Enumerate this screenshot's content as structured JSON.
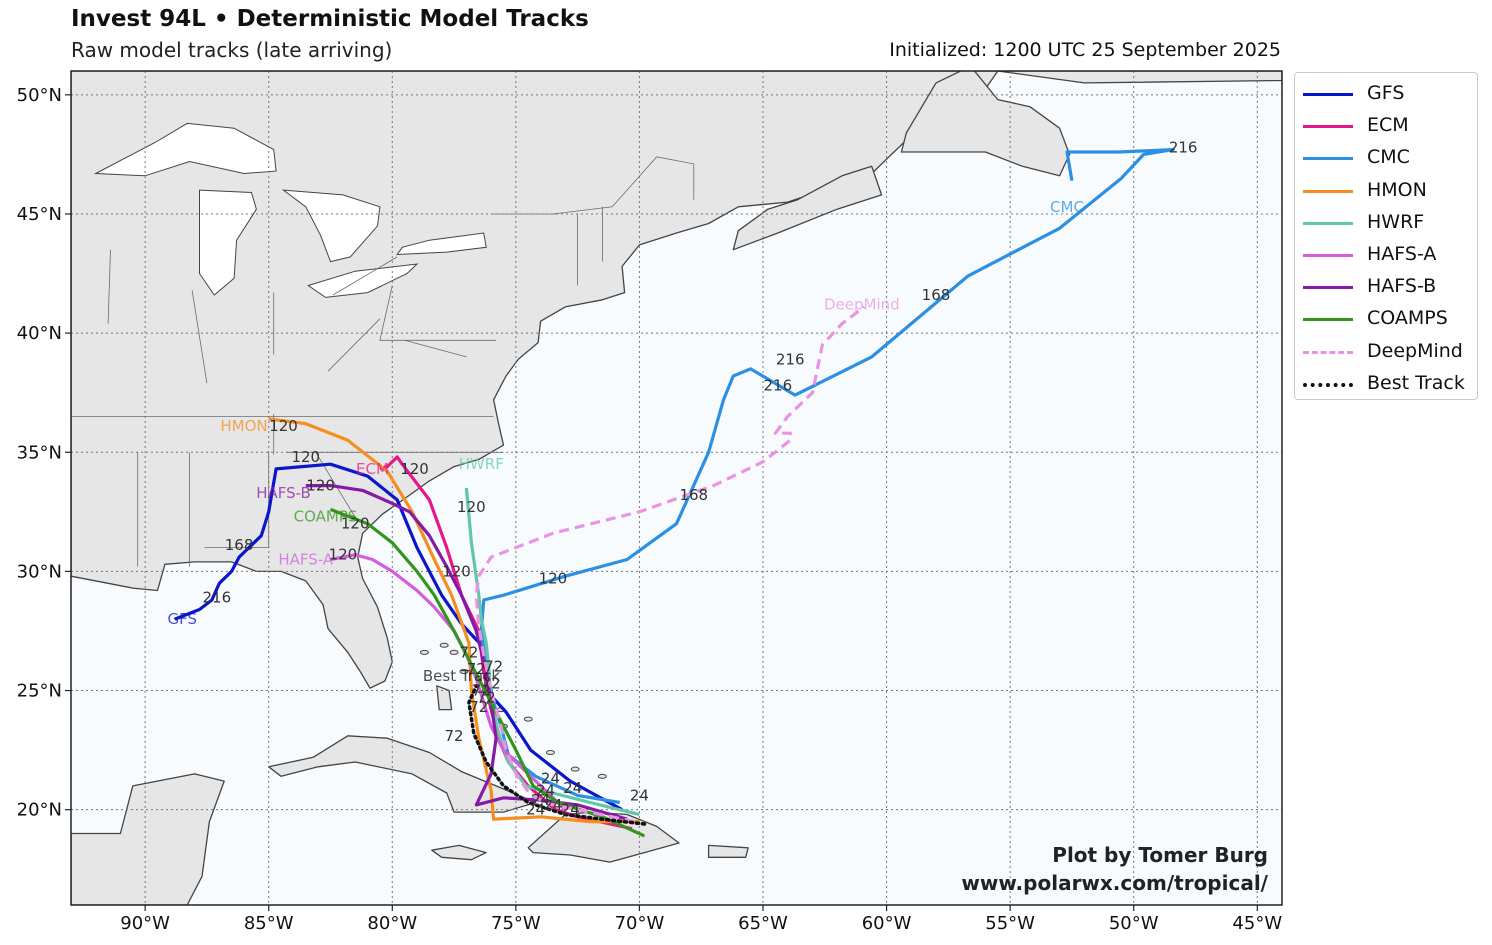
{
  "header": {
    "title": "Invest 94L • Deterministic Model Tracks",
    "subtitle": "Raw model tracks (late arriving)",
    "initialized": "Initialized: 1200 UTC 25 September 2025"
  },
  "credit": {
    "line1": "Plot by Tomer Burg",
    "line2": "www.polarwx.com/tropical/"
  },
  "colors": {
    "ocean": "#f7fbfe",
    "land": "#e6e6e6",
    "coast": "#444444",
    "grid": "#777777"
  },
  "chart_data": {
    "type": "map-tracks",
    "extent": {
      "lon": [
        -93,
        -44
      ],
      "lat": [
        16,
        51
      ]
    },
    "lon_ticks": [
      -90,
      -85,
      -80,
      -75,
      -70,
      -65,
      -60,
      -55,
      -50,
      -45
    ],
    "lat_ticks": [
      20,
      25,
      30,
      35,
      40,
      45,
      50
    ],
    "lon_tick_labels": [
      "90°W",
      "85°W",
      "80°W",
      "75°W",
      "70°W",
      "65°W",
      "60°W",
      "55°W",
      "50°W",
      "45°W"
    ],
    "lat_tick_labels": [
      "20°N",
      "25°N",
      "30°N",
      "35°N",
      "40°N",
      "45°N",
      "50°N"
    ],
    "grid": true,
    "legend_position": "outside right",
    "series": [
      {
        "name": "GFS",
        "color": "#0a16cc",
        "style": "solid",
        "points": [
          [
            -70.7,
            20.0
          ],
          [
            -72.8,
            21.2
          ],
          [
            -74.4,
            22.5
          ],
          [
            -75.4,
            24.1
          ],
          [
            -76.2,
            25.0
          ],
          [
            -76.3,
            26.8
          ],
          [
            -77.2,
            27.8
          ],
          [
            -78.0,
            29.0
          ],
          [
            -79.0,
            31.0
          ],
          [
            -79.8,
            33.0
          ],
          [
            -81.0,
            34.0
          ],
          [
            -82.5,
            34.5
          ],
          [
            -84.7,
            34.3
          ],
          [
            -85.0,
            32.5
          ],
          [
            -85.3,
            31.5
          ],
          [
            -86.2,
            30.6
          ],
          [
            -86.5,
            30.0
          ],
          [
            -87.0,
            29.5
          ],
          [
            -87.3,
            28.8
          ],
          [
            -87.8,
            28.4
          ],
          [
            -88.8,
            28.0
          ]
        ],
        "labels": [
          {
            "text": "24",
            "lon": -70.0,
            "lat": 20.6
          },
          {
            "text": "72",
            "lon": -75.9,
            "lat": 26.0
          },
          {
            "text": "120",
            "lon": -83.5,
            "lat": 34.8
          },
          {
            "text": "168",
            "lon": -86.2,
            "lat": 31.1
          },
          {
            "text": "216",
            "lon": -87.1,
            "lat": 28.9
          },
          {
            "text": "GFS",
            "lon": -88.5,
            "lat": 28.0,
            "tag": true
          }
        ]
      },
      {
        "name": "ECM",
        "color": "#e5188b",
        "style": "solid",
        "points": [
          [
            -70.3,
            19.2
          ],
          [
            -72.5,
            19.7
          ],
          [
            -73.4,
            20.0
          ],
          [
            -74.5,
            21.0
          ],
          [
            -75.3,
            22.0
          ],
          [
            -75.7,
            23.0
          ],
          [
            -76.0,
            24.2
          ],
          [
            -76.3,
            25.8
          ],
          [
            -76.5,
            27.5
          ],
          [
            -77.2,
            29.0
          ],
          [
            -77.8,
            31.0
          ],
          [
            -78.5,
            33.0
          ],
          [
            -79.6,
            34.5
          ],
          [
            -79.8,
            34.8
          ],
          [
            -80.2,
            34.4
          ],
          [
            -80.5,
            34.3
          ]
        ],
        "labels": [
          {
            "text": "120",
            "lon": -79.1,
            "lat": 34.3
          },
          {
            "text": "ECM",
            "lon": -80.8,
            "lat": 34.3,
            "tag": true
          }
        ]
      },
      {
        "name": "CMC",
        "color": "#2b8fe4",
        "style": "solid",
        "points": [
          [
            -70.8,
            20.3
          ],
          [
            -72.5,
            20.6
          ],
          [
            -74.2,
            21.4
          ],
          [
            -75.3,
            22.3
          ],
          [
            -75.6,
            23.5
          ],
          [
            -75.9,
            24.5
          ],
          [
            -76.2,
            26.0
          ],
          [
            -76.4,
            27.5
          ],
          [
            -76.3,
            28.8
          ],
          [
            -75.5,
            29.0
          ],
          [
            -73.0,
            29.8
          ],
          [
            -70.5,
            30.5
          ],
          [
            -68.5,
            32.0
          ],
          [
            -67.2,
            35.0
          ],
          [
            -66.6,
            37.2
          ],
          [
            -66.2,
            38.2
          ],
          [
            -65.5,
            38.5
          ],
          [
            -63.7,
            37.4
          ],
          [
            -60.6,
            39.0
          ],
          [
            -56.7,
            42.4
          ],
          [
            -53.0,
            44.4
          ],
          [
            -50.5,
            46.5
          ],
          [
            -49.6,
            47.5
          ],
          [
            -48.4,
            47.7
          ],
          [
            -50.6,
            47.6
          ],
          [
            -52.7,
            47.6
          ],
          [
            -52.5,
            46.4
          ]
        ],
        "labels": [
          {
            "text": "120",
            "lon": -73.5,
            "lat": 29.7
          },
          {
            "text": "168",
            "lon": -67.8,
            "lat": 33.2
          },
          {
            "text": "216",
            "lon": -64.4,
            "lat": 37.8
          },
          {
            "text": "168",
            "lon": -58.0,
            "lat": 41.6
          },
          {
            "text": "216",
            "lon": -48.0,
            "lat": 47.8
          },
          {
            "text": "CMC",
            "lon": -52.7,
            "lat": 45.3,
            "tag": true
          }
        ]
      },
      {
        "name": "HMON",
        "color": "#f68e1f",
        "style": "solid",
        "points": [
          [
            -70.0,
            19.5
          ],
          [
            -72.0,
            19.5
          ],
          [
            -74.0,
            19.7
          ],
          [
            -75.9,
            19.6
          ],
          [
            -76.0,
            20.8
          ],
          [
            -76.5,
            23.0
          ],
          [
            -76.8,
            25.0
          ],
          [
            -76.9,
            27.0
          ],
          [
            -77.6,
            29.0
          ],
          [
            -78.3,
            30.5
          ],
          [
            -79.2,
            32.5
          ],
          [
            -80.2,
            34.2
          ],
          [
            -81.8,
            35.5
          ],
          [
            -83.5,
            36.2
          ],
          [
            -85.0,
            36.4
          ]
        ],
        "labels": [
          {
            "text": "120",
            "lon": -84.4,
            "lat": 36.1
          },
          {
            "text": "HMON",
            "lon": -86.0,
            "lat": 36.1,
            "tag": true
          }
        ]
      },
      {
        "name": "HWRF",
        "color": "#62c7a9",
        "style": "solid",
        "points": [
          [
            -70.0,
            19.8
          ],
          [
            -72.0,
            20.3
          ],
          [
            -73.5,
            20.7
          ],
          [
            -74.6,
            21.0
          ],
          [
            -75.3,
            22.0
          ],
          [
            -75.7,
            23.2
          ],
          [
            -76.0,
            24.5
          ],
          [
            -76.1,
            26.0
          ],
          [
            -76.2,
            27.0
          ],
          [
            -76.4,
            28.0
          ],
          [
            -76.5,
            29.0
          ],
          [
            -76.8,
            31.2
          ],
          [
            -77.0,
            33.5
          ]
        ],
        "labels": [
          {
            "text": "120",
            "lon": -76.8,
            "lat": 32.7
          },
          {
            "text": "HWRF",
            "lon": -76.4,
            "lat": 34.5,
            "tag": true
          }
        ]
      },
      {
        "name": "HAFS-A",
        "color": "#d35ddc",
        "style": "solid",
        "points": [
          [
            -73.0,
            20.0
          ],
          [
            -74.5,
            21.5
          ],
          [
            -75.5,
            22.5
          ],
          [
            -76.0,
            23.5
          ],
          [
            -76.3,
            24.5
          ],
          [
            -76.6,
            25.5
          ],
          [
            -77.0,
            26.5
          ],
          [
            -77.5,
            27.5
          ],
          [
            -78.3,
            28.5
          ],
          [
            -79.0,
            29.2
          ],
          [
            -80.0,
            30.0
          ],
          [
            -80.8,
            30.5
          ],
          [
            -81.5,
            30.7
          ],
          [
            -82.5,
            30.5
          ]
        ],
        "labels": [
          {
            "text": "72",
            "lon": -76.6,
            "lat": 25.9
          },
          {
            "text": "120",
            "lon": -82.0,
            "lat": 30.7
          },
          {
            "text": "HAFS-A",
            "lon": -83.5,
            "lat": 30.5,
            "tag": true
          }
        ]
      },
      {
        "name": "HAFS-B",
        "color": "#8619a8",
        "style": "solid",
        "points": [
          [
            -70.5,
            19.6
          ],
          [
            -72.5,
            20.2
          ],
          [
            -74.0,
            20.4
          ],
          [
            -75.5,
            20.5
          ],
          [
            -76.6,
            20.2
          ],
          [
            -76.0,
            21.5
          ],
          [
            -75.8,
            23.0
          ],
          [
            -76.0,
            24.5
          ],
          [
            -76.2,
            25.8
          ],
          [
            -76.6,
            27.5
          ],
          [
            -77.2,
            29.0
          ],
          [
            -77.8,
            30.2
          ],
          [
            -78.5,
            31.5
          ],
          [
            -79.3,
            32.5
          ],
          [
            -80.1,
            32.9
          ],
          [
            -81.2,
            33.4
          ],
          [
            -82.5,
            33.6
          ],
          [
            -83.5,
            33.6
          ]
        ],
        "labels": [
          {
            "text": "72",
            "lon": -76.4,
            "lat": 25.0
          },
          {
            "text": "120",
            "lon": -82.9,
            "lat": 33.6
          },
          {
            "text": "HAFS-B",
            "lon": -84.4,
            "lat": 33.3,
            "tag": true
          }
        ]
      },
      {
        "name": "COAMPS",
        "color": "#33951e",
        "style": "solid",
        "points": [
          [
            -69.8,
            18.9
          ],
          [
            -71.5,
            19.7
          ],
          [
            -73.3,
            20.3
          ],
          [
            -74.3,
            21.0
          ],
          [
            -75.0,
            22.5
          ],
          [
            -75.5,
            23.5
          ],
          [
            -76.0,
            24.5
          ],
          [
            -76.5,
            25.5
          ],
          [
            -77.0,
            26.5
          ],
          [
            -77.5,
            27.5
          ],
          [
            -78.3,
            29.0
          ],
          [
            -79.0,
            30.0
          ],
          [
            -80.0,
            31.2
          ],
          [
            -81.0,
            32.0
          ],
          [
            -82.0,
            32.4
          ],
          [
            -82.5,
            32.6
          ]
        ],
        "labels": [
          {
            "text": "72",
            "lon": -76.9,
            "lat": 26.6
          },
          {
            "text": "120",
            "lon": -81.5,
            "lat": 32.0
          },
          {
            "text": "COAMPS",
            "lon": -82.7,
            "lat": 32.3,
            "tag": true
          }
        ]
      },
      {
        "name": "DeepMind",
        "color": "#e994e1",
        "style": "dashed",
        "points": [
          [
            -70.2,
            19.5
          ],
          [
            -72.0,
            19.9
          ],
          [
            -73.5,
            20.2
          ],
          [
            -74.4,
            20.6
          ],
          [
            -75.0,
            21.5
          ],
          [
            -75.4,
            22.5
          ],
          [
            -75.6,
            23.5
          ],
          [
            -76.0,
            25.0
          ],
          [
            -76.3,
            26.5
          ],
          [
            -76.5,
            27.7
          ],
          [
            -76.6,
            29.0
          ],
          [
            -76.5,
            29.8
          ],
          [
            -76.0,
            30.6
          ],
          [
            -73.5,
            31.6
          ],
          [
            -70.0,
            32.5
          ],
          [
            -67.0,
            33.6
          ],
          [
            -65.0,
            34.6
          ],
          [
            -63.9,
            35.5
          ],
          [
            -63.9,
            35.8
          ],
          [
            -64.5,
            35.8
          ],
          [
            -64.0,
            36.5
          ],
          [
            -63.0,
            37.5
          ],
          [
            -62.8,
            38.5
          ],
          [
            -62.6,
            39.5
          ],
          [
            -61.8,
            40.4
          ],
          [
            -60.9,
            41.1
          ]
        ],
        "labels": [
          {
            "text": "216",
            "lon": -63.9,
            "lat": 38.9
          },
          {
            "text": "DeepMind",
            "lon": -61.0,
            "lat": 41.2,
            "tag": true
          }
        ]
      },
      {
        "name": "Best Track",
        "color": "#111111",
        "style": "dotted",
        "points": [
          [
            -69.8,
            19.4
          ],
          [
            -71.5,
            19.6
          ],
          [
            -73.0,
            19.8
          ],
          [
            -74.5,
            20.3
          ],
          [
            -75.5,
            21.0
          ],
          [
            -76.2,
            22.0
          ],
          [
            -76.7,
            23.2
          ],
          [
            -76.9,
            24.5
          ],
          [
            -76.6,
            25.2
          ]
        ],
        "labels": [
          {
            "text": "72",
            "lon": -77.5,
            "lat": 23.1
          },
          {
            "text": "Best Track",
            "lon": -77.2,
            "lat": 25.6,
            "tag": true
          }
        ]
      }
    ],
    "extra_labels": [
      {
        "text": "72",
        "lon": -76.5,
        "lat": 24.3
      },
      {
        "text": "72",
        "lon": -76.0,
        "lat": 25.3
      },
      {
        "text": "72",
        "lon": -76.2,
        "lat": 24.7
      },
      {
        "text": "120",
        "lon": -77.4,
        "lat": 30.0
      },
      {
        "text": "24",
        "lon": -73.6,
        "lat": 21.3
      },
      {
        "text": "24",
        "lon": -72.7,
        "lat": 20.9
      },
      {
        "text": "24",
        "lon": -73.8,
        "lat": 20.8
      },
      {
        "text": "24",
        "lon": -74.0,
        "lat": 20.4
      },
      {
        "text": "24",
        "lon": -73.5,
        "lat": 20.2
      },
      {
        "text": "24",
        "lon": -72.8,
        "lat": 20.0
      },
      {
        "text": "24",
        "lon": -74.2,
        "lat": 20.0
      }
    ]
  },
  "legend": [
    {
      "name": "GFS",
      "color": "#0a16cc",
      "style": "solid"
    },
    {
      "name": "ECM",
      "color": "#e5188b",
      "style": "solid"
    },
    {
      "name": "CMC",
      "color": "#2b8fe4",
      "style": "solid"
    },
    {
      "name": "HMON",
      "color": "#f68e1f",
      "style": "solid"
    },
    {
      "name": "HWRF",
      "color": "#62c7a9",
      "style": "solid"
    },
    {
      "name": "HAFS-A",
      "color": "#d35ddc",
      "style": "solid"
    },
    {
      "name": "HAFS-B",
      "color": "#8619a8",
      "style": "solid"
    },
    {
      "name": "COAMPS",
      "color": "#33951e",
      "style": "solid"
    },
    {
      "name": "DeepMind",
      "color": "#e994e1",
      "style": "dashed"
    },
    {
      "name": "Best Track",
      "color": "#111111",
      "style": "dotted"
    }
  ]
}
